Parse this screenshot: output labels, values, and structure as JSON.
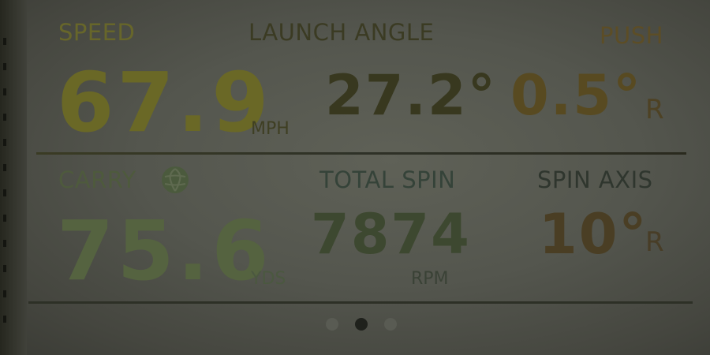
{
  "top_row": {
    "speed": {
      "label": "SPEED",
      "value": "67.9",
      "unit": "MPH"
    },
    "launch_angle": {
      "label": "LAUNCH ANGLE",
      "value": "27.2°"
    },
    "push": {
      "label": "PUSH",
      "value": "0.5°",
      "direction": "R"
    }
  },
  "bottom_row": {
    "carry": {
      "label": "CARRY",
      "icon": "globe-icon",
      "value": "75.6",
      "unit": "YDS"
    },
    "total_spin": {
      "label": "TOTAL SPIN",
      "value": "7874",
      "unit": "RPM"
    },
    "spin_axis": {
      "label": "SPIN AXIS",
      "value": "10°",
      "direction": "R"
    }
  },
  "pagination": {
    "pages": 3,
    "active_index": 1
  },
  "colors": {
    "speed": "#6c6a24",
    "launch": "#3a3a22",
    "push": "#5b4c22",
    "carry_label": "#4e5a3c",
    "carry_value": "#566440",
    "spin_label": "#354339",
    "spin_value": "#3d4930",
    "axis": "#4a3e25",
    "divider": "#2a2c22",
    "dot_active": "#1e201b",
    "dot_inactive": "#575951"
  }
}
